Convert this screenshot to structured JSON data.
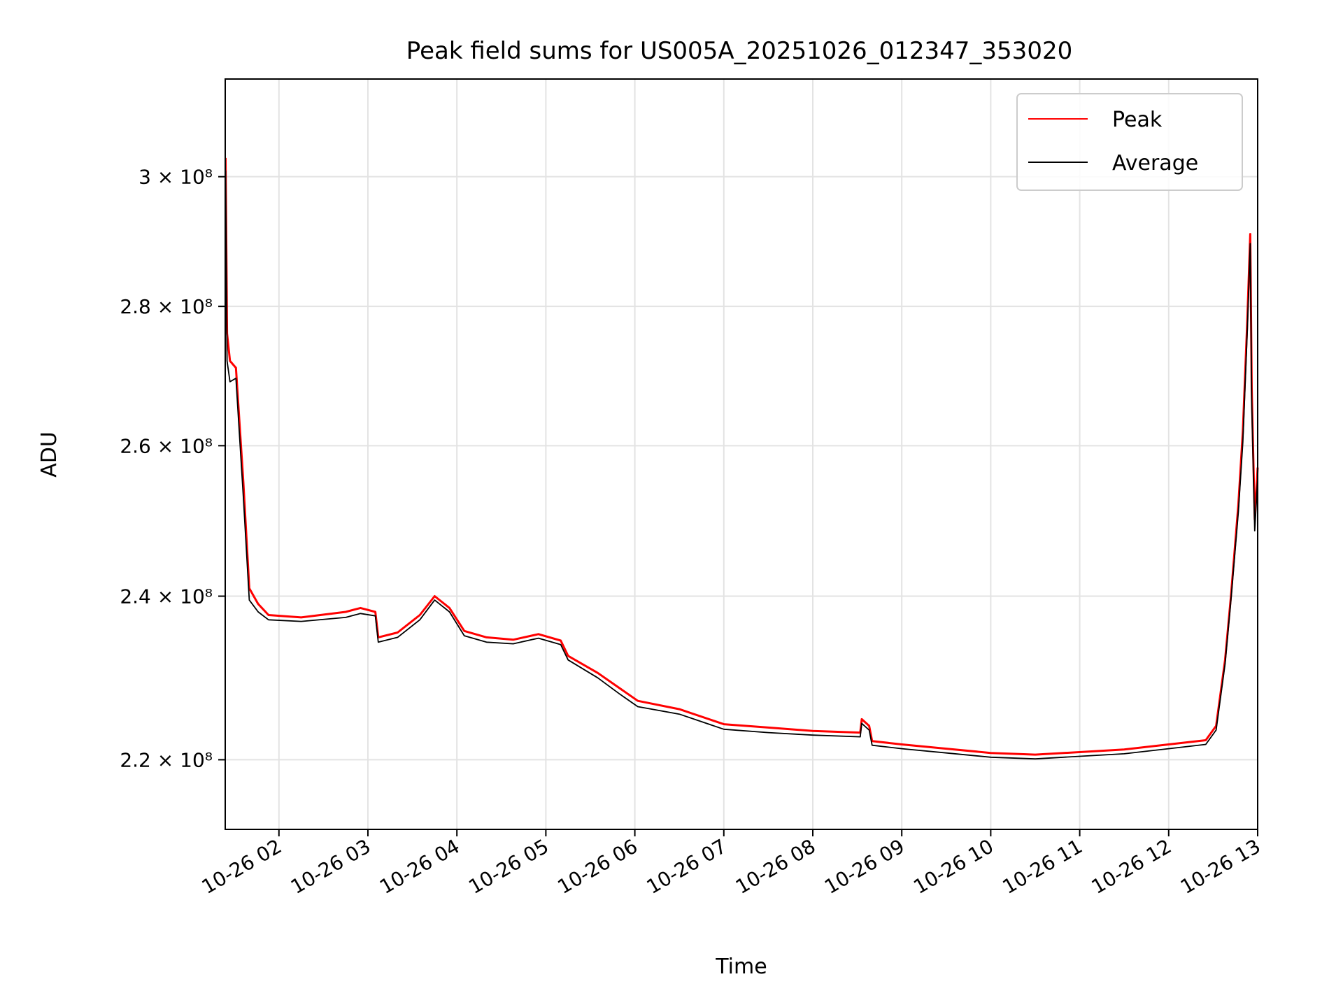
{
  "chart_data": {
    "type": "line",
    "title": "Peak field sums for US005A_20251026_012347_353020",
    "xlabel": "Time",
    "ylabel": "ADU",
    "yscale": "log",
    "ylim": [
      212000000,
      316000000
    ],
    "xlim": [
      "2025-10-26 01:23:47",
      "2025-10-26 13:00:00"
    ],
    "grid": true,
    "legend_position": "top-right",
    "x_ticks": [
      {
        "t": "2025-10-26 02:00",
        "label": "10-26 02"
      },
      {
        "t": "2025-10-26 03:00",
        "label": "10-26 03"
      },
      {
        "t": "2025-10-26 04:00",
        "label": "10-26 04"
      },
      {
        "t": "2025-10-26 05:00",
        "label": "10-26 05"
      },
      {
        "t": "2025-10-26 06:00",
        "label": "10-26 06"
      },
      {
        "t": "2025-10-26 07:00",
        "label": "10-26 07"
      },
      {
        "t": "2025-10-26 08:00",
        "label": "10-26 08"
      },
      {
        "t": "2025-10-26 09:00",
        "label": "10-26 09"
      },
      {
        "t": "2025-10-26 10:00",
        "label": "10-26 10"
      },
      {
        "t": "2025-10-26 11:00",
        "label": "10-26 11"
      },
      {
        "t": "2025-10-26 12:00",
        "label": "10-26 12"
      },
      {
        "t": "2025-10-26 13:00",
        "label": "10-26 13"
      }
    ],
    "y_ticks": [
      {
        "v": 220000000,
        "label": "2.2 × 10⁸"
      },
      {
        "v": 240000000,
        "label": "2.4 × 10⁸"
      },
      {
        "v": 260000000,
        "label": "2.6 × 10⁸"
      },
      {
        "v": 280000000,
        "label": "2.8 × 10⁸"
      },
      {
        "v": 300000000,
        "label": "3 × 10⁸"
      }
    ],
    "series": [
      {
        "name": "Peak",
        "color": "#ff0000",
        "points": [
          [
            "2025-10-26 01:24",
            303000000
          ],
          [
            "2025-10-26 01:25",
            276000000
          ],
          [
            "2025-10-26 01:27",
            272000000
          ],
          [
            "2025-10-26 01:31",
            271000000
          ],
          [
            "2025-10-26 01:36",
            255000000
          ],
          [
            "2025-10-26 01:40",
            241000000
          ],
          [
            "2025-10-26 01:46",
            239000000
          ],
          [
            "2025-10-26 01:53",
            237600000
          ],
          [
            "2025-10-26 02:15",
            237300000
          ],
          [
            "2025-10-26 02:45",
            238000000
          ],
          [
            "2025-10-26 02:55",
            238500000
          ],
          [
            "2025-10-26 03:05",
            238000000
          ],
          [
            "2025-10-26 03:07",
            234800000
          ],
          [
            "2025-10-26 03:20",
            235400000
          ],
          [
            "2025-10-26 03:35",
            237600000
          ],
          [
            "2025-10-26 03:45",
            240000000
          ],
          [
            "2025-10-26 03:55",
            238500000
          ],
          [
            "2025-10-26 04:05",
            235600000
          ],
          [
            "2025-10-26 04:20",
            234800000
          ],
          [
            "2025-10-26 04:38",
            234500000
          ],
          [
            "2025-10-26 04:55",
            235200000
          ],
          [
            "2025-10-26 05:10",
            234400000
          ],
          [
            "2025-10-26 05:15",
            232500000
          ],
          [
            "2025-10-26 05:35",
            230400000
          ],
          [
            "2025-10-26 05:50",
            228500000
          ],
          [
            "2025-10-26 06:02",
            227000000
          ],
          [
            "2025-10-26 06:30",
            226000000
          ],
          [
            "2025-10-26 07:00",
            224200000
          ],
          [
            "2025-10-26 07:30",
            223800000
          ],
          [
            "2025-10-26 08:00",
            223400000
          ],
          [
            "2025-10-26 08:32",
            223200000
          ],
          [
            "2025-10-26 08:33",
            224800000
          ],
          [
            "2025-10-26 08:38",
            224000000
          ],
          [
            "2025-10-26 08:40",
            222200000
          ],
          [
            "2025-10-26 09:00",
            221800000
          ],
          [
            "2025-10-26 09:30",
            221300000
          ],
          [
            "2025-10-26 10:00",
            220800000
          ],
          [
            "2025-10-26 10:30",
            220600000
          ],
          [
            "2025-10-26 11:00",
            220900000
          ],
          [
            "2025-10-26 11:30",
            221200000
          ],
          [
            "2025-10-26 12:00",
            221800000
          ],
          [
            "2025-10-26 12:25",
            222300000
          ],
          [
            "2025-10-26 12:32",
            224000000
          ],
          [
            "2025-10-26 12:38",
            232000000
          ],
          [
            "2025-10-26 12:42",
            240000000
          ],
          [
            "2025-10-26 12:47",
            252000000
          ],
          [
            "2025-10-26 12:50",
            262000000
          ],
          [
            "2025-10-26 12:53",
            278000000
          ],
          [
            "2025-10-26 12:55",
            291000000
          ],
          [
            "2025-10-26 12:56",
            268000000
          ],
          [
            "2025-10-26 12:58",
            250000000
          ],
          [
            "2025-10-26 13:00",
            257000000
          ]
        ]
      },
      {
        "name": "Average",
        "color": "#000000",
        "points": [
          [
            "2025-10-26 01:24",
            301000000
          ],
          [
            "2025-10-26 01:25",
            272000000
          ],
          [
            "2025-10-26 01:27",
            269000000
          ],
          [
            "2025-10-26 01:31",
            269500000
          ],
          [
            "2025-10-26 01:36",
            253000000
          ],
          [
            "2025-10-26 01:40",
            239500000
          ],
          [
            "2025-10-26 01:46",
            238000000
          ],
          [
            "2025-10-26 01:53",
            237000000
          ],
          [
            "2025-10-26 02:15",
            236800000
          ],
          [
            "2025-10-26 02:45",
            237300000
          ],
          [
            "2025-10-26 02:55",
            237800000
          ],
          [
            "2025-10-26 03:05",
            237500000
          ],
          [
            "2025-10-26 03:07",
            234200000
          ],
          [
            "2025-10-26 03:20",
            234800000
          ],
          [
            "2025-10-26 03:35",
            237000000
          ],
          [
            "2025-10-26 03:45",
            239500000
          ],
          [
            "2025-10-26 03:55",
            238000000
          ],
          [
            "2025-10-26 04:05",
            235000000
          ],
          [
            "2025-10-26 04:20",
            234200000
          ],
          [
            "2025-10-26 04:38",
            234000000
          ],
          [
            "2025-10-26 04:55",
            234700000
          ],
          [
            "2025-10-26 05:10",
            233900000
          ],
          [
            "2025-10-26 05:15",
            232000000
          ],
          [
            "2025-10-26 05:35",
            229800000
          ],
          [
            "2025-10-26 05:50",
            227800000
          ],
          [
            "2025-10-26 06:02",
            226300000
          ],
          [
            "2025-10-26 06:30",
            225400000
          ],
          [
            "2025-10-26 07:00",
            223600000
          ],
          [
            "2025-10-26 07:30",
            223200000
          ],
          [
            "2025-10-26 08:00",
            222900000
          ],
          [
            "2025-10-26 08:32",
            222700000
          ],
          [
            "2025-10-26 08:33",
            224300000
          ],
          [
            "2025-10-26 08:38",
            223500000
          ],
          [
            "2025-10-26 08:40",
            221700000
          ],
          [
            "2025-10-26 09:00",
            221300000
          ],
          [
            "2025-10-26 09:30",
            220800000
          ],
          [
            "2025-10-26 10:00",
            220300000
          ],
          [
            "2025-10-26 10:30",
            220100000
          ],
          [
            "2025-10-26 11:00",
            220400000
          ],
          [
            "2025-10-26 11:30",
            220700000
          ],
          [
            "2025-10-26 12:00",
            221300000
          ],
          [
            "2025-10-26 12:25",
            221800000
          ],
          [
            "2025-10-26 12:32",
            223500000
          ],
          [
            "2025-10-26 12:38",
            231500000
          ],
          [
            "2025-10-26 12:42",
            239500000
          ],
          [
            "2025-10-26 12:47",
            251000000
          ],
          [
            "2025-10-26 12:50",
            260500000
          ],
          [
            "2025-10-26 12:53",
            276500000
          ],
          [
            "2025-10-26 12:55",
            289500000
          ],
          [
            "2025-10-26 12:56",
            266000000
          ],
          [
            "2025-10-26 12:58",
            248500000
          ],
          [
            "2025-10-26 13:00",
            255500000
          ]
        ]
      }
    ]
  }
}
